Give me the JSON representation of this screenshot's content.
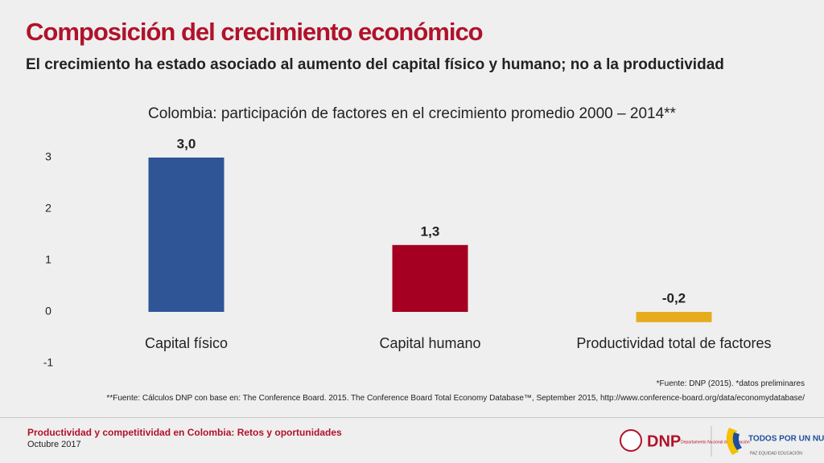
{
  "title": "Composición del crecimiento económico",
  "subtitle": "El crecimiento ha estado asociado al aumento del capital físico y humano; no a la productividad",
  "footnotes": [
    "*Fuente: DNP (2015). *datos preliminares",
    "**Fuente: Cálculos DNP con base en: The Conference Board. 2015. The Conference Board Total Economy Database™, September 2015, http://www.conference-board.org/data/economydatabase/"
  ],
  "footer": {
    "title": "Productividad y competitividad en Colombia: Retos y oportunidades",
    "date": "Octubre 2017"
  },
  "logos": {
    "dnp": "DNP",
    "dnp_name": "Departamento Nacional de Planeación",
    "gov": "TODOS POR UN NUEVO PAÍS",
    "gov_motto": "PAZ EQUIDAD EDUCACIÓN"
  },
  "chart_data": {
    "type": "bar",
    "title": "Colombia: participación de factores en el crecimiento promedio 2000 – 2014**",
    "categories": [
      "Capital físico",
      "Capital humano",
      "Productividad total de factores"
    ],
    "values": [
      3.0,
      1.3,
      -0.2
    ],
    "value_labels": [
      "3,0",
      "1,3",
      "-0,2"
    ],
    "colors": [
      "#2f5597",
      "#a50021",
      "#e6ac1e"
    ],
    "ylim": [
      -1,
      3.5
    ],
    "yticks": [
      -1,
      0,
      1,
      2,
      3
    ],
    "grid": false
  }
}
